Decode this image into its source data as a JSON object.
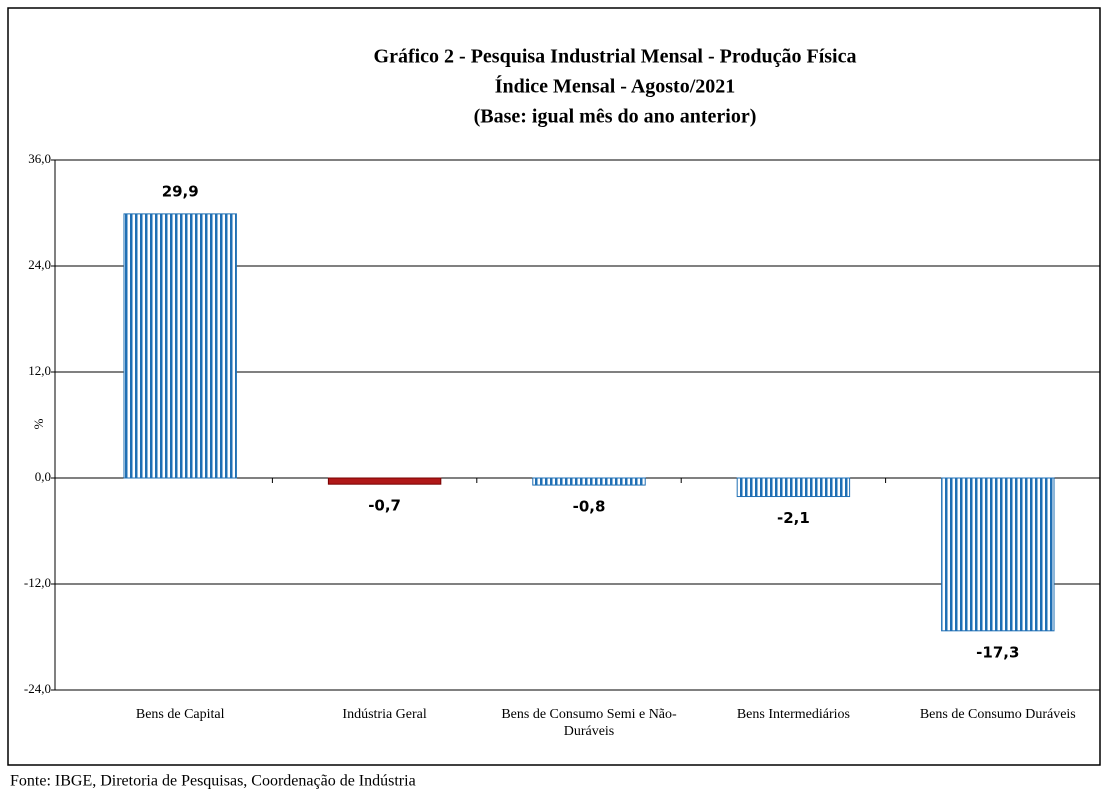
{
  "chart_data": {
    "type": "bar",
    "title": "Gráfico 2 - Pesquisa Industrial Mensal - Produção Física",
    "subtitle": [
      "Índice Mensal - Agosto/2021",
      "(Base: igual mês do ano anterior)"
    ],
    "y_label": "%",
    "categories": [
      "Bens de Capital",
      "Indústria Geral",
      "Bens de Consumo Semi e Não-Duráveis",
      "Bens Intermediários",
      "Bens de Consumo Duráveis"
    ],
    "values": [
      29.9,
      -0.7,
      -0.8,
      -2.1,
      -17.3
    ],
    "value_labels": [
      "29,9",
      "-0,7",
      "-0,8",
      "-2,1",
      "-17,3"
    ],
    "colors": [
      "#1f6fb4",
      "#b01818",
      "#1f6fb4",
      "#1f6fb4",
      "#1f6fb4"
    ],
    "striped": [
      true,
      false,
      true,
      true,
      true
    ],
    "ylim": [
      -24,
      36
    ],
    "yticks": [
      {
        "value": -24,
        "label": "-24,0"
      },
      {
        "value": -12,
        "label": "-12,0"
      },
      {
        "value": 0,
        "label": "0,0"
      },
      {
        "value": 12,
        "label": "12,0"
      },
      {
        "value": 24,
        "label": "24,0"
      },
      {
        "value": 36,
        "label": "36,0"
      }
    ],
    "grid": true,
    "source": "Fonte: IBGE, Diretoria de Pesquisas, Coordenação de Indústria"
  }
}
